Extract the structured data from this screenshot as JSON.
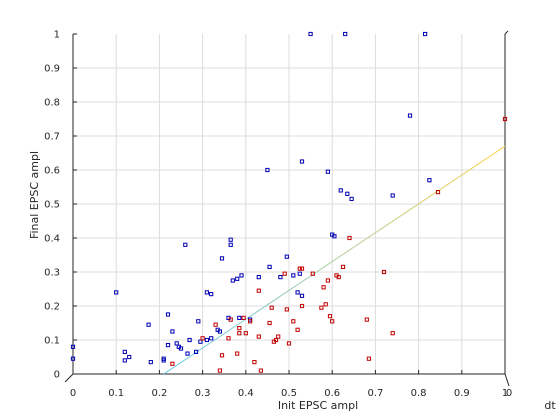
{
  "chart_data": {
    "type": "scatter",
    "title": "",
    "xlabel": "Init EPSC ampl",
    "ylabel": "Final EPSC ampl",
    "zlabel": "dt",
    "xlim": [
      0,
      1
    ],
    "ylim": [
      0,
      1
    ],
    "x_ticks": [
      "0",
      "0.1",
      "0.2",
      "0.3",
      "0.4",
      "0.5",
      "0.6",
      "0.7",
      "0.8",
      "0.9",
      "1"
    ],
    "y_ticks": [
      "0",
      "0.1",
      "0.2",
      "0.3",
      "0.4",
      "0.5",
      "0.6",
      "0.7",
      "0.8",
      "0.9",
      "1"
    ],
    "z_tick": "0",
    "grid": true,
    "colors": {
      "series_blue": "#0000b4",
      "series_red": "#c00000",
      "fit_start": "#5ac8f0",
      "fit_end": "#ffd24a",
      "grid": "#dcdcdc",
      "axis": "#262626"
    },
    "series": [
      {
        "color": "blue",
        "points": [
          [
            0.0,
            0.08
          ],
          [
            0.0,
            0.045
          ],
          [
            0.1,
            0.24
          ],
          [
            0.12,
            0.065
          ],
          [
            0.12,
            0.04
          ],
          [
            0.13,
            0.05
          ],
          [
            0.175,
            0.145
          ],
          [
            0.18,
            0.035
          ],
          [
            0.21,
            0.045
          ],
          [
            0.21,
            0.04
          ],
          [
            0.22,
            0.175
          ],
          [
            0.22,
            0.085
          ],
          [
            0.23,
            0.125
          ],
          [
            0.24,
            0.09
          ],
          [
            0.245,
            0.08
          ],
          [
            0.25,
            0.075
          ],
          [
            0.26,
            0.38
          ],
          [
            0.265,
            0.06
          ],
          [
            0.27,
            0.1
          ],
          [
            0.285,
            0.065
          ],
          [
            0.29,
            0.155
          ],
          [
            0.295,
            0.095
          ],
          [
            0.31,
            0.24
          ],
          [
            0.31,
            0.1
          ],
          [
            0.32,
            0.235
          ],
          [
            0.32,
            0.105
          ],
          [
            0.335,
            0.13
          ],
          [
            0.34,
            0.125
          ],
          [
            0.345,
            0.34
          ],
          [
            0.36,
            0.165
          ],
          [
            0.365,
            0.395
          ],
          [
            0.365,
            0.38
          ],
          [
            0.37,
            0.275
          ],
          [
            0.38,
            0.28
          ],
          [
            0.385,
            0.165
          ],
          [
            0.39,
            0.29
          ],
          [
            0.41,
            0.16
          ],
          [
            0.43,
            0.285
          ],
          [
            0.45,
            0.6
          ],
          [
            0.455,
            0.315
          ],
          [
            0.48,
            0.285
          ],
          [
            0.495,
            0.345
          ],
          [
            0.51,
            0.29
          ],
          [
            0.52,
            0.24
          ],
          [
            0.525,
            0.295
          ],
          [
            0.53,
            0.625
          ],
          [
            0.53,
            0.23
          ],
          [
            0.55,
            1.0
          ],
          [
            0.59,
            0.595
          ],
          [
            0.6,
            0.41
          ],
          [
            0.605,
            0.405
          ],
          [
            0.62,
            0.54
          ],
          [
            0.63,
            1.0
          ],
          [
            0.635,
            0.53
          ],
          [
            0.645,
            0.515
          ],
          [
            0.74,
            0.525
          ],
          [
            0.78,
            0.76
          ],
          [
            0.815,
            1.0
          ],
          [
            0.825,
            0.57
          ]
        ]
      },
      {
        "color": "red",
        "points": [
          [
            0.23,
            0.03
          ],
          [
            0.3,
            0.105
          ],
          [
            0.33,
            0.145
          ],
          [
            0.34,
            0.01
          ],
          [
            0.345,
            0.055
          ],
          [
            0.36,
            0.105
          ],
          [
            0.365,
            0.16
          ],
          [
            0.38,
            0.06
          ],
          [
            0.385,
            0.135
          ],
          [
            0.385,
            0.12
          ],
          [
            0.395,
            0.165
          ],
          [
            0.4,
            0.12
          ],
          [
            0.41,
            0.155
          ],
          [
            0.42,
            0.035
          ],
          [
            0.43,
            0.245
          ],
          [
            0.43,
            0.11
          ],
          [
            0.435,
            0.01
          ],
          [
            0.455,
            0.15
          ],
          [
            0.46,
            0.195
          ],
          [
            0.465,
            0.095
          ],
          [
            0.47,
            0.1
          ],
          [
            0.475,
            0.11
          ],
          [
            0.49,
            0.295
          ],
          [
            0.495,
            0.19
          ],
          [
            0.5,
            0.09
          ],
          [
            0.51,
            0.155
          ],
          [
            0.52,
            0.13
          ],
          [
            0.525,
            0.31
          ],
          [
            0.53,
            0.31
          ],
          [
            0.53,
            0.2
          ],
          [
            0.555,
            0.295
          ],
          [
            0.575,
            0.195
          ],
          [
            0.58,
            0.255
          ],
          [
            0.585,
            0.205
          ],
          [
            0.59,
            0.275
          ],
          [
            0.595,
            0.17
          ],
          [
            0.6,
            0.155
          ],
          [
            0.61,
            0.29
          ],
          [
            0.615,
            0.285
          ],
          [
            0.625,
            0.315
          ],
          [
            0.64,
            0.4
          ],
          [
            0.68,
            0.16
          ],
          [
            0.685,
            0.045
          ],
          [
            0.72,
            0.3
          ],
          [
            0.74,
            0.12
          ],
          [
            0.845,
            0.535
          ],
          [
            1.0,
            0.75
          ]
        ]
      }
    ],
    "fit_line": {
      "x": [
        0.21,
        1.0
      ],
      "y": [
        0.0,
        0.67
      ]
    }
  }
}
